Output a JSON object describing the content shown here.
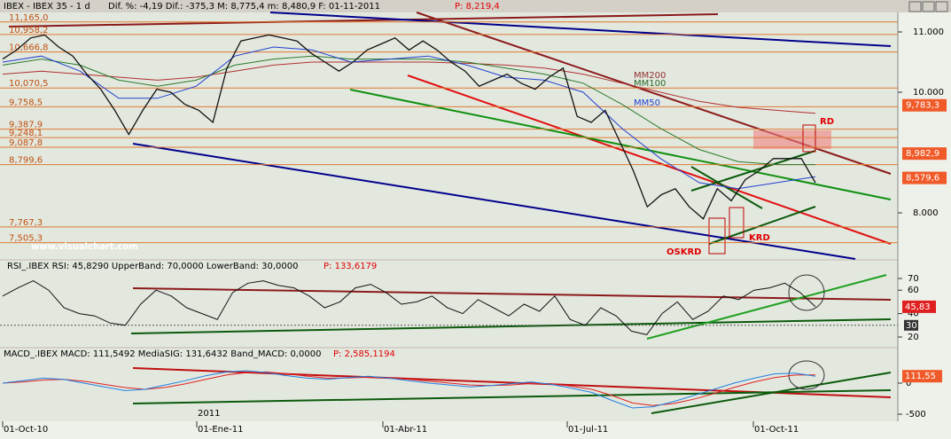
{
  "header": {
    "symbol": "IBEX - IBEX 35 - 1 d",
    "stats": "Dif. %: -4,19 Dif.: -375,3 M: 8,775,4 m: 8,480,9 F: 01-11-2011",
    "last": "P: 8,219,4"
  },
  "price_panel": {
    "levels": [
      {
        "value": 11165.0,
        "label": "11,165,0"
      },
      {
        "value": 10958.2,
        "label": "10,958,2"
      },
      {
        "value": 10666.8,
        "label": "10,666,8"
      },
      {
        "value": 10070.5,
        "label": "10,070,5"
      },
      {
        "value": 9758.5,
        "label": "9,758,5"
      },
      {
        "value": 9387.9,
        "label": "9,387,9"
      },
      {
        "value": 9248.1,
        "label": "9,248,1"
      },
      {
        "value": 9087.8,
        "label": "9,087,8"
      },
      {
        "value": 8799.6,
        "label": "8,799,6"
      },
      {
        "value": 7767.3,
        "label": "7,767,3"
      },
      {
        "value": 7505.3,
        "label": "7,505,3"
      }
    ],
    "ticks": [
      {
        "value": 11000,
        "label": "11.000"
      },
      {
        "value": 10000,
        "label": "10.000"
      },
      {
        "value": 8000,
        "label": "8.000"
      }
    ],
    "markers": [
      {
        "value": 9783.3,
        "label": "9,783,3"
      },
      {
        "value": 8982.9,
        "label": "8,982,9"
      },
      {
        "value": 8579.6,
        "label": "8,579,6"
      }
    ],
    "annotations": [
      "MM200",
      "MM100",
      "MM50",
      "RD",
      "KRD",
      "OSKRD"
    ],
    "watermark": "www.visualchart.com",
    "closes": [
      10550,
      10700,
      10900,
      10950,
      10750,
      10600,
      10300,
      10050,
      9700,
      9300,
      9700,
      10050,
      10000,
      9800,
      9700,
      9500,
      10400,
      10850,
      10900,
      10950,
      10900,
      10850,
      10650,
      10500,
      10350,
      10500,
      10700,
      10800,
      10900,
      10700,
      10850,
      10700,
      10500,
      10350,
      10100,
      10200,
      10300,
      10150,
      10050,
      10250,
      10400,
      9600,
      9500,
      9700,
      9200,
      8700,
      8100,
      8300,
      8400,
      8100,
      7900,
      8400,
      8200,
      8550,
      8700,
      8900,
      8900,
      8900,
      8500
    ],
    "mm50": [
      10500,
      10600,
      10350,
      9900,
      9900,
      10100,
      10600,
      10750,
      10700,
      10500,
      10550,
      10600,
      10450,
      10250,
      10200,
      10000,
      9400,
      8900,
      8500,
      8400,
      8500,
      8600
    ],
    "mm100": [
      10450,
      10550,
      10450,
      10200,
      10100,
      10200,
      10450,
      10550,
      10600,
      10550,
      10550,
      10550,
      10500,
      10400,
      10300,
      10150,
      9800,
      9400,
      9050,
      8850,
      8800,
      8800
    ],
    "mm200": [
      10300,
      10350,
      10300,
      10250,
      10200,
      10250,
      10350,
      10450,
      10500,
      10500,
      10500,
      10500,
      10480,
      10450,
      10400,
      10300,
      10150,
      10000,
      9850,
      9750,
      9700,
      9650
    ]
  },
  "rsi_panel": {
    "header": "RSI_.IBEX RSI: 45,8290 UpperBand: 70,0000 LowerBand: 30,0000",
    "last": "P: 133,6179",
    "ticks": [
      70,
      60,
      40,
      20
    ],
    "band": 30,
    "marker": {
      "value": 45.83,
      "label": "45,83"
    },
    "values": [
      55,
      62,
      68,
      60,
      45,
      40,
      38,
      32,
      30,
      48,
      60,
      55,
      45,
      40,
      35,
      58,
      66,
      68,
      64,
      62,
      55,
      45,
      50,
      62,
      65,
      58,
      48,
      50,
      55,
      45,
      40,
      52,
      45,
      38,
      48,
      42,
      55,
      35,
      30,
      45,
      38,
      25,
      22,
      40,
      50,
      35,
      42,
      55,
      52,
      60,
      62,
      66,
      58,
      46
    ]
  },
  "macd_panel": {
    "header": "MACD_.IBEX MACD: 111,5492 MediaSIG: 131,6432 Band_MACD: 0,0000",
    "last": "P: 2,585,1194",
    "ticks": [
      0,
      -500
    ],
    "marker": {
      "value": 111.55,
      "label": "111,55"
    },
    "macd": [
      0,
      40,
      80,
      60,
      0,
      -60,
      -120,
      -100,
      -30,
      40,
      120,
      180,
      200,
      170,
      120,
      80,
      60,
      90,
      110,
      80,
      40,
      0,
      -30,
      -60,
      -40,
      -10,
      20,
      -20,
      -80,
      -150,
      -280,
      -400,
      -380,
      -300,
      -200,
      -100,
      0,
      80,
      150,
      160,
      111.55
    ],
    "signal": [
      0,
      20,
      50,
      60,
      30,
      -20,
      -70,
      -100,
      -70,
      -10,
      60,
      130,
      170,
      180,
      150,
      110,
      80,
      85,
      95,
      85,
      60,
      30,
      0,
      -30,
      -40,
      -30,
      -5,
      -10,
      -50,
      -100,
      -200,
      -320,
      -360,
      -330,
      -260,
      -170,
      -70,
      20,
      90,
      130,
      131.64
    ]
  },
  "time_axis": {
    "labels": [
      "01-Oct-10",
      "01-Ene-11",
      "01-Abr-11",
      "01-Jul-11",
      "01-Oct-11"
    ],
    "year": "2011"
  }
}
